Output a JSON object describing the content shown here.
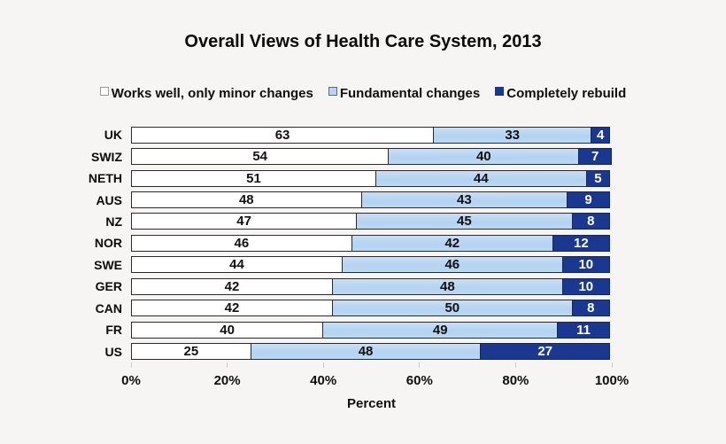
{
  "title": "Overall Views of Health Care System, 2013",
  "legend": {
    "items": [
      {
        "label": "Works well, only minor changes",
        "color": "#ffffff",
        "border": "#9a9a9a"
      },
      {
        "label": "Fundamental changes",
        "color": "#b7d5f2",
        "border": "#5a6a80"
      },
      {
        "label": "Completely rebuild",
        "color": "#1b3890",
        "border": "#1b3890"
      }
    ]
  },
  "chart_data": {
    "type": "bar",
    "orientation": "horizontal",
    "stacked": true,
    "title": "Overall Views of Health Care System, 2013",
    "categories": [
      "UK",
      "SWIZ",
      "NETH",
      "AUS",
      "NZ",
      "NOR",
      "SWE",
      "GER",
      "CAN",
      "FR",
      "US"
    ],
    "series": [
      {
        "name": "Works well, only minor changes",
        "color": "#ffffff",
        "text_color": "#111111",
        "values": [
          63,
          54,
          51,
          48,
          47,
          46,
          44,
          42,
          42,
          40,
          25
        ]
      },
      {
        "name": "Fundamental changes",
        "color": "#b7d5f2",
        "text_color": "#111111",
        "values": [
          33,
          40,
          44,
          43,
          45,
          42,
          46,
          48,
          50,
          49,
          48
        ]
      },
      {
        "name": "Completely rebuild",
        "color": "#1b3890",
        "text_color": "#ffffff",
        "values": [
          4,
          7,
          5,
          9,
          8,
          12,
          10,
          10,
          8,
          11,
          27
        ]
      }
    ],
    "xlabel": "Percent",
    "x_ticks": [
      "0%",
      "20%",
      "40%",
      "60%",
      "80%",
      "100%"
    ],
    "xlim": [
      0,
      100
    ],
    "legend_position": "top",
    "grid": false
  }
}
